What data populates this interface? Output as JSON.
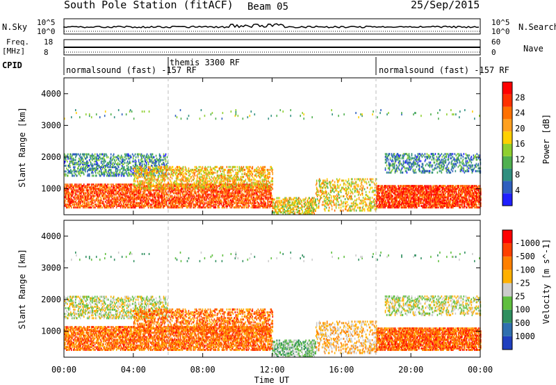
{
  "header": {
    "station": "South Pole Station (fitACF)",
    "beam": "Beam 05",
    "date": "25/Sep/2015"
  },
  "params": {
    "nsky_label": "N.Sky",
    "nsky_top": "10^5",
    "nsky_bottom": "10^0",
    "freq_label": "Freq.",
    "freq_unit": "[MHz]",
    "freq_top": "18",
    "freq_bottom": "8",
    "nsearch_label": "N.Search",
    "nsearch_top": "10^5",
    "nsearch_bottom": "10^0",
    "nave_label": "Nave",
    "nave_top": "60",
    "nave_bottom": "0",
    "cpid_label": "CPID",
    "cpid_segments": [
      {
        "label": "normalsound (fast) -157 RF",
        "start_h": 0,
        "end_h": 6
      },
      {
        "label": "themis 3300 RF",
        "start_h": 6,
        "end_h": 18
      },
      {
        "label": "normalsound (fast) -157 RF",
        "start_h": 18,
        "end_h": 24
      }
    ]
  },
  "chart_data": [
    {
      "type": "heatmap",
      "name": "power",
      "ylabel": "Slant Range [km]",
      "ylim": [
        180,
        4500
      ],
      "yticks": [
        1000,
        2000,
        3000,
        4000
      ],
      "xlim": [
        0,
        24
      ],
      "xticks": [
        "00:00",
        "04:00",
        "08:00",
        "12:00",
        "16:00",
        "20:00",
        "00:00"
      ],
      "colorbar": {
        "label": "Power [dB]",
        "ticks": [
          "4",
          "8",
          "12",
          "16",
          "20",
          "24",
          "28"
        ],
        "range": [
          0,
          30
        ],
        "colors": [
          "#1f1fff",
          "#2f5fbf",
          "#2f8f7f",
          "#4fb04f",
          "#8fcf2f",
          "#ffd000",
          "#ffa020",
          "#ff7000",
          "#ff3000",
          "#ff0000"
        ]
      }
    },
    {
      "type": "heatmap",
      "name": "velocity",
      "ylabel": "Slant Range [km]",
      "xlabel": "Time UT",
      "ylim": [
        180,
        4500
      ],
      "yticks": [
        1000,
        2000,
        3000,
        4000
      ],
      "xlim": [
        0,
        24
      ],
      "xticks": [
        "00:00",
        "04:00",
        "08:00",
        "12:00",
        "16:00",
        "20:00",
        "00:00"
      ],
      "colorbar": {
        "label": "Velocity [m s^-1]",
        "ticks": [
          "1000",
          "500",
          "100",
          "25",
          "-25",
          "-100",
          "-500",
          "-1000"
        ],
        "colors": [
          "#1f3fbf",
          "#2f6faf",
          "#2f8f5f",
          "#5fbf3f",
          "#cccccc",
          "#ffb000",
          "#ff8000",
          "#ff4000",
          "#ff0000"
        ]
      }
    }
  ]
}
